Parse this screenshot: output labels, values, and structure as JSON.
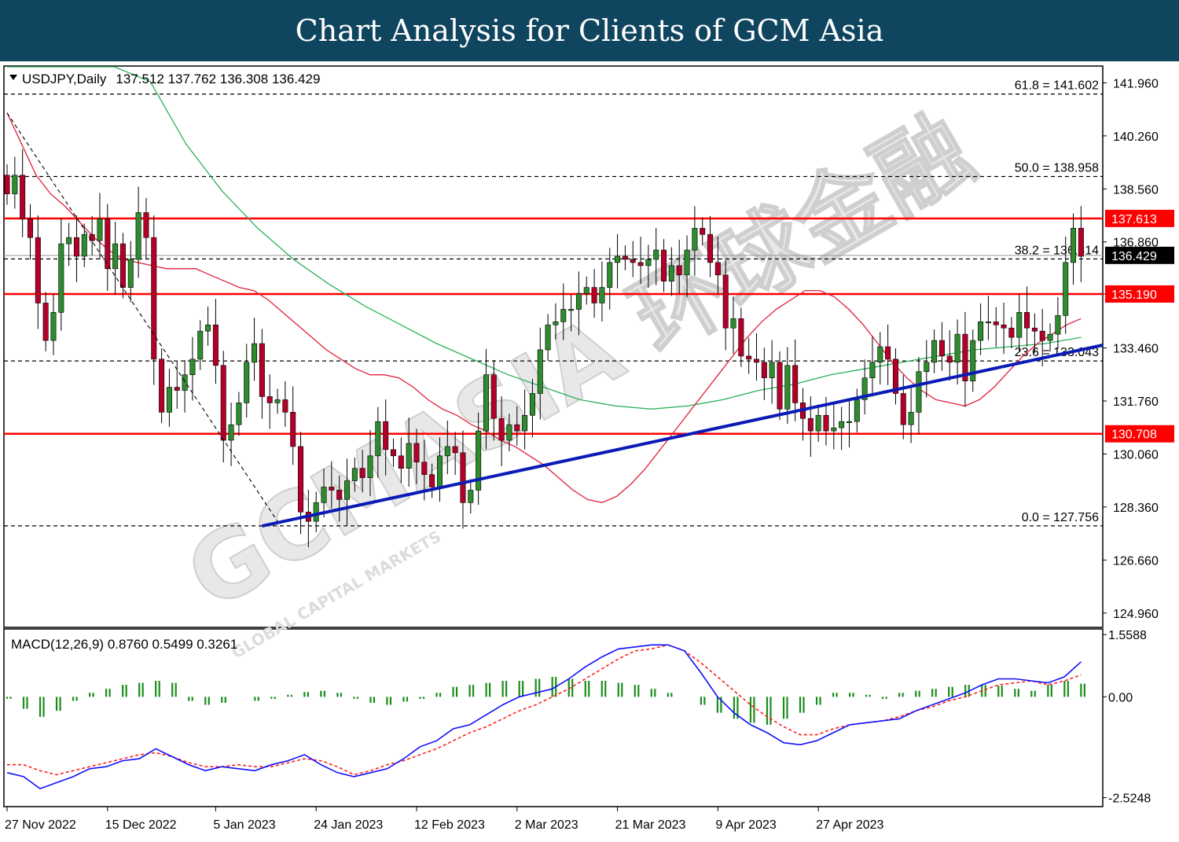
{
  "banner": {
    "title": "Chart Analysis for Clients of GCM Asia",
    "color": "#10455f"
  },
  "watermark": {
    "brand": "GCMASIA",
    "chinese": "环球金融",
    "tagline": "GLOBAL CAPITAL MARKETS"
  },
  "chart_data": [
    {
      "type": "candlestick",
      "symbol": "USDJPY",
      "timeframe": "Daily",
      "ohlc_header": "137.512 137.762 136.308 136.429",
      "last_ohlc": {
        "open": 137.512,
        "high": 137.762,
        "low": 136.308,
        "close": 136.429
      },
      "price_axis": {
        "ylim": [
          124.5,
          142.5
        ],
        "ticks": [
          "141.960",
          "140.260",
          "138.560",
          "136.860",
          "135.190",
          "133.460",
          "131.760",
          "130.060",
          "128.360",
          "126.660",
          "124.960"
        ]
      },
      "x_axis": {
        "labels": [
          "27 Nov 2022",
          "15 Dec 2022",
          "5 Jan 2023",
          "24 Jan 2023",
          "12 Feb 2023",
          "2 Mar 2023",
          "21 Mar 2023",
          "9 Apr 2023",
          "27 Apr 2023"
        ],
        "label_bar_index": [
          0,
          13,
          27,
          40,
          53,
          66,
          79,
          92,
          105
        ]
      },
      "current_price": {
        "value": 136.429,
        "label": "136.429"
      },
      "horizontal_levels": [
        {
          "value": 137.613,
          "label": "137.613",
          "color": "#ff0000"
        },
        {
          "value": 135.19,
          "label": "135.190",
          "color": "#ff0000"
        },
        {
          "value": 130.708,
          "label": "130.708",
          "color": "#ff0000"
        }
      ],
      "fibonacci": [
        {
          "label": "61.8 = 141.602",
          "value": 141.602
        },
        {
          "label": "50.0 = 138.958",
          "value": 138.958
        },
        {
          "label": "38.2 = 136.314",
          "value": 136.314
        },
        {
          "label": "23.6 = 133.043",
          "value": 133.043
        },
        {
          "label": "0.0 = 127.756",
          "value": 127.756
        }
      ],
      "trendline": {
        "color": "#0a1bb5",
        "from": {
          "bar": 33,
          "price": 127.75
        },
        "to": {
          "bar": 140,
          "price": 133.55
        }
      },
      "fib_guide": {
        "from": {
          "bar": 0,
          "price": 141.0
        },
        "to": {
          "bar": 35,
          "price": 127.9
        }
      },
      "colors": {
        "bull": "#2e8b2e",
        "bear": "#b40028",
        "wick": "#000000",
        "ma_fast": "#e0203c",
        "ma_slow": "#2bb05b"
      },
      "closes": [
        138.4,
        139.0,
        137.6,
        137.0,
        134.9,
        133.7,
        134.6,
        136.8,
        137.0,
        136.4,
        137.1,
        136.9,
        137.6,
        136.0,
        136.8,
        135.4,
        136.3,
        137.8,
        137.0,
        133.1,
        131.4,
        132.2,
        132.1,
        132.6,
        133.1,
        134.0,
        134.2,
        132.9,
        130.5,
        131.0,
        131.7,
        133.0,
        133.6,
        131.9,
        131.7,
        131.8,
        131.4,
        130.3,
        128.2,
        127.9,
        128.5,
        129.0,
        128.9,
        128.6,
        129.2,
        129.6,
        129.3,
        130.0,
        131.1,
        130.2,
        130.0,
        129.6,
        130.4,
        129.8,
        129.4,
        129.0,
        130.0,
        130.3,
        130.1,
        128.5,
        128.9,
        130.8,
        132.6,
        131.2,
        130.5,
        131.0,
        130.8,
        131.3,
        132.0,
        133.4,
        134.2,
        134.3,
        134.7,
        134.7,
        135.2,
        135.4,
        134.9,
        135.4,
        136.2,
        136.4,
        136.3,
        136.2,
        136.1,
        136.3,
        136.6,
        135.6,
        136.1,
        135.8,
        136.6,
        137.3,
        137.1,
        136.2,
        135.8,
        134.1,
        134.4,
        133.2,
        133.1,
        133.0,
        132.5,
        133.0,
        131.5,
        132.9,
        131.7,
        131.2,
        130.8,
        131.3,
        130.8,
        130.9,
        131.1,
        131.1,
        131.8,
        132.5,
        133.0,
        133.5,
        133.1,
        132.0,
        131.0,
        131.4,
        132.7,
        133.0,
        133.7,
        133.2,
        133.0,
        133.9,
        132.4,
        133.7,
        134.3,
        134.3,
        134.2,
        134.1,
        133.8,
        134.6,
        134.1,
        134.0,
        133.7,
        133.9,
        134.5,
        136.2,
        137.3,
        136.4
      ],
      "ma_fast_values": [
        141.0,
        140.0,
        139.0,
        138.4,
        138.0,
        137.5,
        137.0,
        136.6,
        136.3,
        136.2,
        136.1,
        136.0,
        136.0,
        136.0,
        135.8,
        135.6,
        135.4,
        135.3,
        135.0,
        134.6,
        134.2,
        133.8,
        133.4,
        133.1,
        132.8,
        132.6,
        132.6,
        132.5,
        132.2,
        131.8,
        131.5,
        131.3,
        131.0,
        130.8,
        130.5,
        130.3,
        130.0,
        129.7,
        129.3,
        128.9,
        128.6,
        128.5,
        128.7,
        129.1,
        129.6,
        130.2,
        130.8,
        131.4,
        132.0,
        132.6,
        133.2,
        133.8,
        134.3,
        134.7,
        135.0,
        135.3,
        135.3,
        135.1,
        134.7,
        134.2,
        133.6,
        133.0,
        132.5,
        132.1,
        131.8,
        131.7,
        131.6,
        131.8,
        132.2,
        132.7,
        133.2,
        133.6,
        133.9,
        134.2,
        134.4
      ],
      "ma_slow_values": [
        150.0,
        148.0,
        146.0,
        144.0,
        142.0,
        140.0,
        138.5,
        137.3,
        136.3,
        135.5,
        134.8,
        134.2,
        133.6,
        133.1,
        132.6,
        132.2,
        131.8,
        131.6,
        131.5,
        131.6,
        131.8,
        132.1,
        132.3,
        132.6,
        132.8,
        133.0,
        133.2,
        133.4,
        133.5,
        133.6,
        133.8
      ],
      "macd": {
        "label": "MACD(12,26,9) 0.8760 0.5499 0.3261",
        "params": "12,26,9",
        "values": [
          0.876,
          0.5499,
          0.3261
        ],
        "ylim": [
          -2.75,
          1.7
        ],
        "ticks": [
          "1.5588",
          "0.00",
          "-2.5248"
        ],
        "macd_line_color": "#1010ff",
        "signal_line_color": "#ff2020",
        "histogram_color": "#1a8c1a",
        "main_series": [
          -1.9,
          -2.0,
          -2.3,
          -2.15,
          -2.0,
          -1.8,
          -1.75,
          -1.6,
          -1.55,
          -1.3,
          -1.5,
          -1.7,
          -1.85,
          -1.75,
          -1.8,
          -1.85,
          -1.7,
          -1.6,
          -1.45,
          -1.7,
          -1.9,
          -2.0,
          -1.9,
          -1.8,
          -1.55,
          -1.25,
          -1.1,
          -0.8,
          -0.7,
          -0.45,
          -0.2,
          0.0,
          0.1,
          0.2,
          0.45,
          0.75,
          1.0,
          1.2,
          1.25,
          1.3,
          1.3,
          1.15,
          0.6,
          0.0,
          -0.4,
          -0.7,
          -0.9,
          -1.15,
          -1.2,
          -1.1,
          -0.9,
          -0.7,
          -0.65,
          -0.6,
          -0.55,
          -0.35,
          -0.2,
          -0.05,
          0.1,
          0.3,
          0.45,
          0.45,
          0.4,
          0.35,
          0.5,
          0.876
        ],
        "signal_series": [
          -1.7,
          -1.7,
          -1.85,
          -1.95,
          -1.85,
          -1.75,
          -1.65,
          -1.55,
          -1.45,
          -1.4,
          -1.5,
          -1.65,
          -1.75,
          -1.75,
          -1.7,
          -1.75,
          -1.75,
          -1.65,
          -1.55,
          -1.6,
          -1.75,
          -1.95,
          -1.85,
          -1.7,
          -1.6,
          -1.45,
          -1.3,
          -1.1,
          -0.9,
          -0.75,
          -0.55,
          -0.35,
          -0.2,
          0.0,
          0.2,
          0.45,
          0.7,
          0.95,
          1.15,
          1.2,
          1.3,
          1.15,
          0.85,
          0.5,
          0.15,
          -0.2,
          -0.5,
          -0.75,
          -0.95,
          -0.95,
          -0.8,
          -0.7,
          -0.65,
          -0.6,
          -0.5,
          -0.35,
          -0.25,
          -0.1,
          0.0,
          0.15,
          0.3,
          0.35,
          0.4,
          0.3,
          0.4,
          0.55
        ],
        "histogram_series": [
          -0.05,
          -0.3,
          -0.5,
          -0.35,
          -0.1,
          0.1,
          0.2,
          0.3,
          0.35,
          0.4,
          0.35,
          -0.1,
          -0.2,
          -0.15,
          0.0,
          -0.1,
          -0.05,
          0.05,
          0.12,
          0.15,
          0.1,
          -0.05,
          -0.15,
          -0.2,
          -0.12,
          -0.05,
          0.1,
          0.25,
          0.3,
          0.35,
          0.4,
          0.4,
          0.45,
          0.5,
          0.45,
          0.4,
          0.4,
          0.35,
          0.3,
          0.2,
          0.1,
          0.0,
          -0.2,
          -0.4,
          -0.55,
          -0.65,
          -0.7,
          -0.55,
          -0.4,
          -0.2,
          0.1,
          0.1,
          0.05,
          -0.05,
          0.1,
          0.15,
          0.2,
          0.25,
          0.3,
          0.3,
          0.28,
          0.2,
          0.15,
          0.3,
          0.4,
          0.33
        ]
      }
    }
  ]
}
